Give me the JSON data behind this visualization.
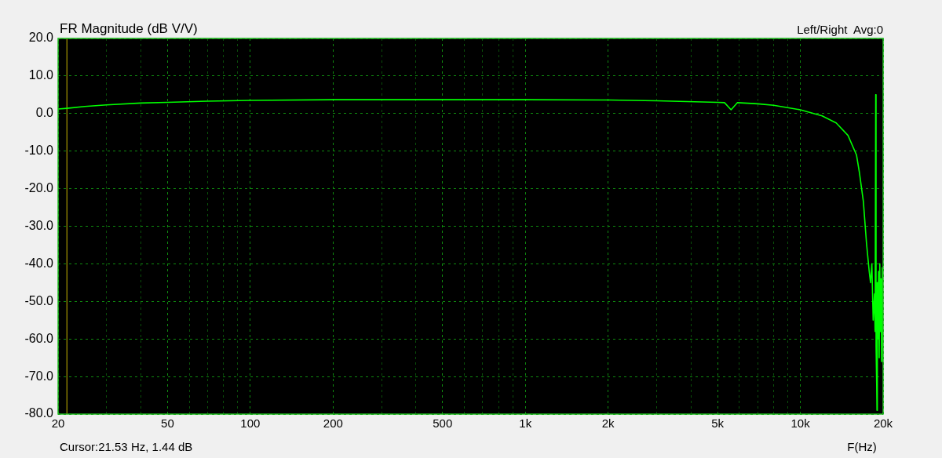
{
  "chart_data": {
    "type": "line",
    "title": "FR Magnitude (dB V/V)",
    "xlabel": "F(Hz)",
    "annotations": [
      "Left/Right  Avg:0"
    ],
    "log": "x",
    "grid": true,
    "legend": false,
    "marker": "none",
    "line_style": "solid",
    "xlim": [
      20,
      20000
    ],
    "xticks": [
      {
        "value": 20,
        "label": "20"
      },
      {
        "value": 30,
        "label": null
      },
      {
        "value": 40,
        "label": null
      },
      {
        "value": 50,
        "label": "50"
      },
      {
        "value": 60,
        "label": null
      },
      {
        "value": 70,
        "label": null
      },
      {
        "value": 80,
        "label": null
      },
      {
        "value": 90,
        "label": null
      },
      {
        "value": 100,
        "label": "100"
      },
      {
        "value": 200,
        "label": "200"
      },
      {
        "value": 300,
        "label": null
      },
      {
        "value": 400,
        "label": null
      },
      {
        "value": 500,
        "label": "500"
      },
      {
        "value": 600,
        "label": null
      },
      {
        "value": 700,
        "label": null
      },
      {
        "value": 800,
        "label": null
      },
      {
        "value": 900,
        "label": null
      },
      {
        "value": 1000,
        "label": "1k"
      },
      {
        "value": 2000,
        "label": "2k"
      },
      {
        "value": 3000,
        "label": null
      },
      {
        "value": 4000,
        "label": null
      },
      {
        "value": 5000,
        "label": "5k"
      },
      {
        "value": 6000,
        "label": null
      },
      {
        "value": 7000,
        "label": null
      },
      {
        "value": 8000,
        "label": null
      },
      {
        "value": 9000,
        "label": null
      },
      {
        "value": 10000,
        "label": "10k"
      },
      {
        "value": 20000,
        "label": "20k"
      }
    ],
    "ylim": [
      -80,
      20
    ],
    "yticks": [
      {
        "value": -80,
        "label": "-80.0"
      },
      {
        "value": -70,
        "label": "-70.0"
      },
      {
        "value": -60,
        "label": "-60.0"
      },
      {
        "value": -50,
        "label": "-50.0"
      },
      {
        "value": -40,
        "label": "-40.0"
      },
      {
        "value": -30,
        "label": "-30.0"
      },
      {
        "value": -20,
        "label": "-20.0"
      },
      {
        "value": -10,
        "label": "-10.0"
      },
      {
        "value": 0,
        "label": "0.0"
      },
      {
        "value": 10,
        "label": "10.0"
      },
      {
        "value": 20,
        "label": "20.0"
      }
    ],
    "ref_lines": [
      {
        "axis": "x",
        "value": 21.53,
        "label": "Cursor:21.53 Hz, 1.44 dB",
        "color": "#c8b400"
      }
    ],
    "series": [
      {
        "color": "#00ff00",
        "x": [
          20,
          21.53,
          25,
          30,
          40,
          50,
          70,
          100,
          200,
          500,
          1000,
          2000,
          3000,
          5000,
          5300,
          5600,
          5900,
          7000,
          8000,
          10000,
          12000,
          13500,
          14900,
          16000,
          16400,
          16950,
          17400,
          17800,
          18000,
          18200,
          18400,
          18600,
          18700,
          18800,
          18850,
          18950,
          19000,
          19050,
          19150,
          19250,
          19350,
          19450,
          19550,
          19650,
          19750,
          19850,
          19950,
          20000
        ],
        "values": [
          1.2,
          1.4,
          1.9,
          2.3,
          2.8,
          3.0,
          3.3,
          3.5,
          3.7,
          3.7,
          3.7,
          3.6,
          3.4,
          3.0,
          2.9,
          1.0,
          2.9,
          2.6,
          2.2,
          1.0,
          -0.6,
          -2.5,
          -5.8,
          -11,
          -15.7,
          -23.4,
          -34.5,
          -42,
          -45,
          -40,
          -55,
          -48,
          -58,
          5,
          -62,
          -72,
          -79,
          -45,
          -60,
          -42,
          -65,
          -40,
          -58,
          -44,
          -66,
          -41,
          -62,
          -50
        ]
      }
    ]
  }
}
